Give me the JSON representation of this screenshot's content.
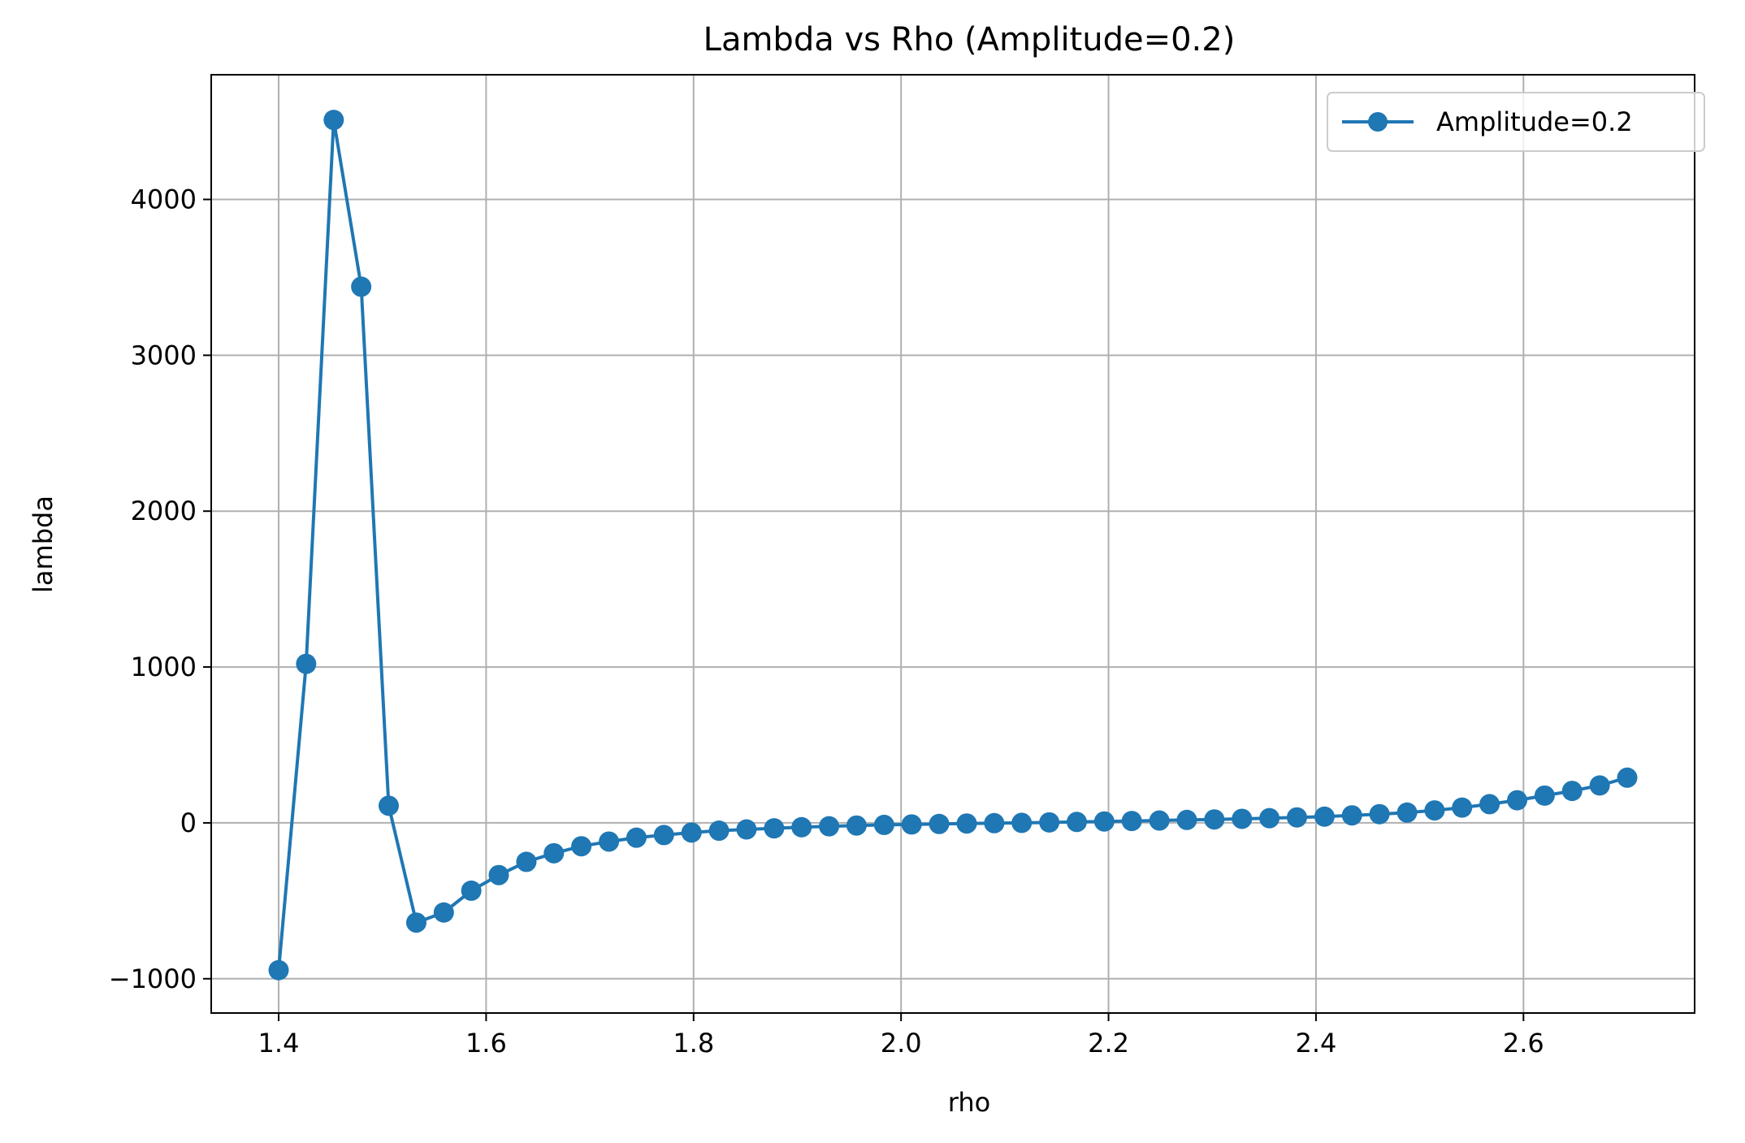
{
  "chart_data": {
    "type": "line",
    "title": "Lambda vs Rho (Amplitude=0.2)",
    "xlabel": "rho",
    "ylabel": "lambda",
    "xlim": [
      1.335,
      2.765
    ],
    "ylim": [
      -1220,
      4800
    ],
    "xticks": [
      1.4,
      1.6,
      1.8,
      2.0,
      2.2,
      2.4,
      2.6
    ],
    "xtick_labels": [
      "1.4",
      "1.6",
      "1.8",
      "2.0",
      "2.2",
      "2.4",
      "2.6"
    ],
    "yticks": [
      -1000,
      0,
      1000,
      2000,
      3000,
      4000
    ],
    "ytick_labels": [
      "−1000",
      "0",
      "1000",
      "2000",
      "3000",
      "4000"
    ],
    "grid": true,
    "legend_position": "top-right",
    "colors": {
      "series": "#1f77b4"
    },
    "series": [
      {
        "name": "Amplitude=0.2",
        "x": [
          1.4,
          1.4265,
          1.4531,
          1.4796,
          1.5061,
          1.5327,
          1.5592,
          1.5857,
          1.6122,
          1.6388,
          1.6653,
          1.6918,
          1.7184,
          1.7449,
          1.7714,
          1.798,
          1.8245,
          1.851,
          1.8776,
          1.9041,
          1.9306,
          1.9571,
          1.9837,
          2.0102,
          2.0367,
          2.0633,
          2.0898,
          2.1163,
          2.1429,
          2.1694,
          2.1959,
          2.2224,
          2.249,
          2.2755,
          2.302,
          2.3286,
          2.3551,
          2.3816,
          2.4082,
          2.4347,
          2.4612,
          2.4878,
          2.5143,
          2.5408,
          2.5673,
          2.5939,
          2.6204,
          2.6469,
          2.6735,
          2.7
        ],
        "y": [
          -945,
          1020,
          4510,
          3440,
          110,
          -640,
          -575,
          -435,
          -335,
          -250,
          -195,
          -150,
          -120,
          -95,
          -78,
          -62,
          -50,
          -42,
          -35,
          -28,
          -22,
          -17,
          -13,
          -10,
          -7,
          -4,
          -2,
          0,
          3,
          6,
          9,
          12,
          15,
          19,
          22,
          26,
          30,
          35,
          40,
          48,
          56,
          66,
          80,
          98,
          120,
          145,
          175,
          205,
          240,
          290
        ]
      }
    ]
  }
}
